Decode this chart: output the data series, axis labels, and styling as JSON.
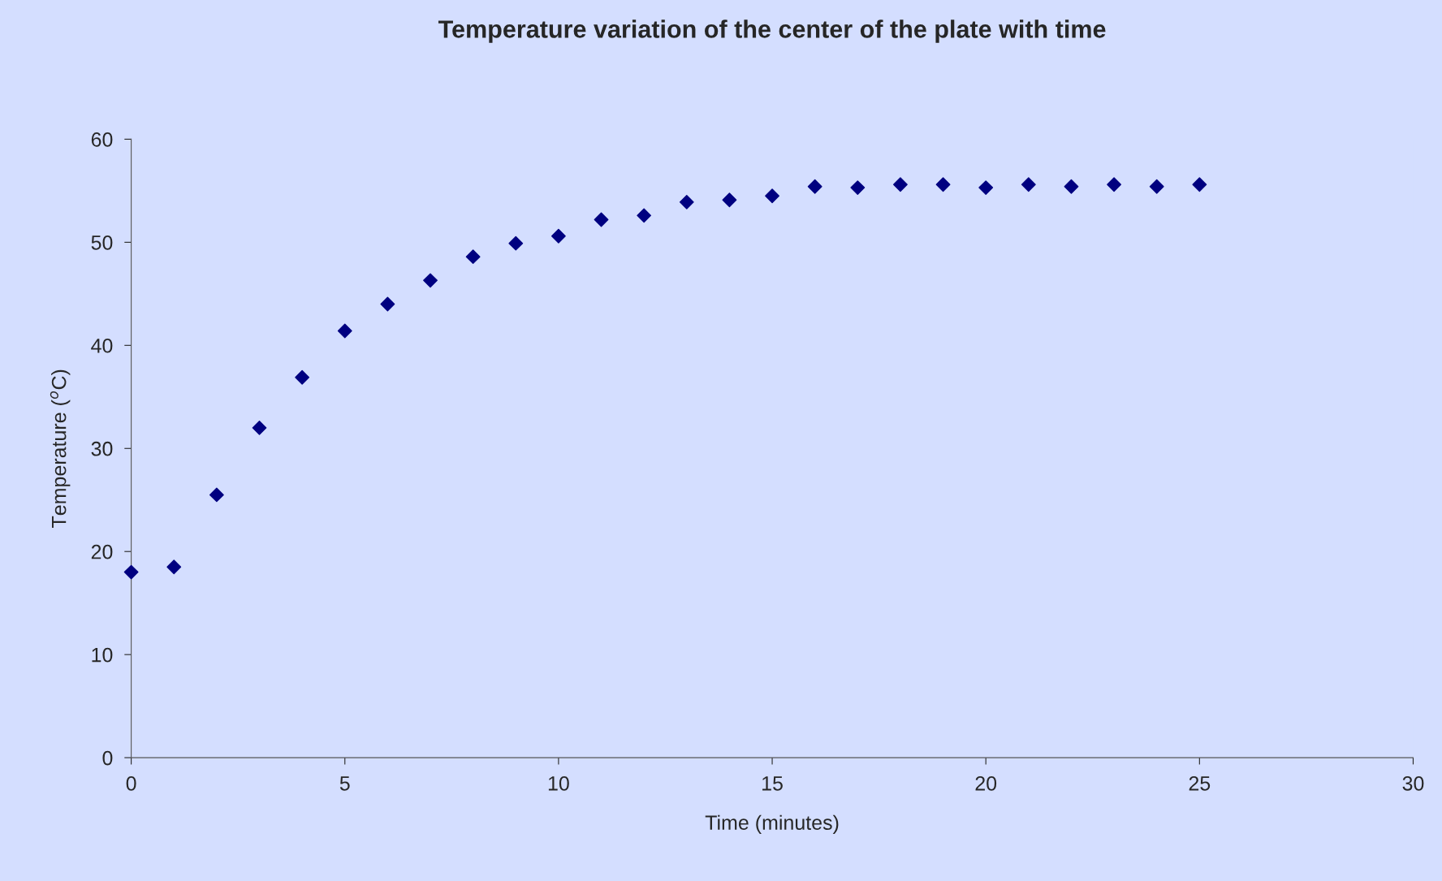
{
  "chart_data": {
    "type": "scatter",
    "title": "Temperature variation of the center of the plate with time",
    "xlabel": "Time (minutes)",
    "ylabel": "Temperature ($^{o}$C)",
    "x": [
      0,
      1,
      2,
      3,
      4,
      5,
      6,
      7,
      8,
      9,
      10,
      11,
      12,
      13,
      14,
      15,
      16,
      17,
      18,
      19,
      20,
      21,
      22,
      23,
      24,
      25
    ],
    "series": [
      {
        "color": "#000080",
        "values": [
          18,
          18.5,
          25.5,
          32,
          36.9,
          41.4,
          44,
          46.3,
          48.6,
          49.9,
          50.6,
          52.2,
          52.6,
          53.9,
          54.1,
          54.5,
          55.4,
          55.3,
          55.6,
          55.6,
          55.3,
          55.6,
          55.4,
          55.6,
          55.4,
          55.6
        ]
      }
    ],
    "xlim": [
      0,
      30
    ],
    "xticks": [
      0,
      5,
      10,
      15,
      20,
      25,
      30
    ],
    "ylim": [
      0,
      60
    ],
    "yticks": [
      0,
      10,
      20,
      30,
      40,
      50,
      60
    ],
    "marker": "diamond",
    "grid": false,
    "legend": false
  }
}
